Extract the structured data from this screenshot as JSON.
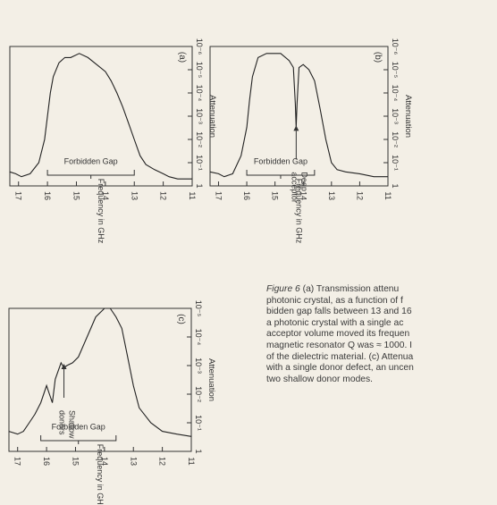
{
  "panels": [
    {
      "id": "a",
      "label": "(a)",
      "ylabel": "Attenuation",
      "xlabel": "Frequency in GHz",
      "gap_label": "Forbidden Gap",
      "annotation": "",
      "y_ticks": [
        "10⁻⁶",
        "10⁻⁵",
        "10⁻⁴",
        "10⁻³",
        "10⁻²",
        "10⁻¹",
        "1"
      ],
      "x_ticks": [
        "11",
        "12",
        "13",
        "14",
        "15",
        "16",
        "17"
      ]
    },
    {
      "id": "b",
      "label": "(b)",
      "ylabel": "Attenuation",
      "xlabel": "Frequency in GHz",
      "gap_label": "Forbidden Gap",
      "annotation": [
        "Deep",
        "acceptor"
      ],
      "y_ticks": [
        "10⁻⁶",
        "10⁻⁵",
        "10⁻⁴",
        "10⁻³",
        "10⁻²",
        "10⁻¹",
        "1"
      ],
      "x_ticks": [
        "11",
        "12",
        "13",
        "14",
        "15",
        "16",
        "17"
      ]
    },
    {
      "id": "c",
      "label": "(c)",
      "ylabel": "Attenuation",
      "xlabel": "Frequency in GHz",
      "gap_label": "Forbidden Gap",
      "annotation": [
        "Shallow",
        "donors"
      ],
      "y_ticks": [
        "10⁻⁵",
        "10⁻⁴",
        "10⁻³",
        "10⁻²",
        "10⁻¹",
        "1"
      ],
      "x_ticks": [
        "11",
        "12",
        "13",
        "14",
        "15",
        "16",
        "17"
      ]
    }
  ],
  "caption": {
    "label": "Figure 6",
    "lines": [
      "(a)  Transmission  attenu",
      "photonic crystal, as a function of f",
      "bidden gap falls between 13 and 16",
      "a photonic crystal with a single ac",
      "acceptor volume moved its frequen",
      "magnetic resonator Q was ≈ 1000. I",
      "of the dielectric material. (c) Attenua",
      "with a single donor defect, an uncen",
      "two shallow donor modes."
    ]
  },
  "chart_data": [
    {
      "type": "line",
      "title": "",
      "panel": "(a)",
      "xlabel": "Frequency in GHz",
      "ylabel": "Attenuation",
      "y_scale": "log",
      "xlim": [
        11,
        17.3
      ],
      "ylim": [
        1e-06,
        1
      ],
      "gap": [
        13,
        16
      ],
      "gap_label": "Forbidden Gap",
      "x": [
        11,
        11.5,
        11.8,
        12,
        12.3,
        12.6,
        12.8,
        13,
        13.2,
        13.4,
        13.6,
        13.8,
        14,
        14.3,
        14.6,
        14.9,
        15.2,
        15.4,
        15.6,
        15.8,
        15.9,
        16,
        16.1,
        16.3,
        16.6,
        16.9,
        17.1,
        17.3
      ],
      "y": [
        0.5,
        0.5,
        0.4,
        0.3,
        0.2,
        0.12,
        0.05,
        0.01,
        0.002,
        0.0004,
        0.0001,
        3e-05,
        1.2e-05,
        6e-06,
        3e-06,
        2e-06,
        3e-06,
        3e-06,
        5e-06,
        2e-05,
        0.0001,
        0.001,
        0.01,
        0.1,
        0.3,
        0.4,
        0.3,
        0.25
      ]
    },
    {
      "type": "line",
      "title": "",
      "panel": "(b)",
      "xlabel": "Frequency in GHz",
      "ylabel": "Attenuation",
      "y_scale": "log",
      "xlim": [
        11,
        17.3
      ],
      "ylim": [
        1e-06,
        1
      ],
      "gap": [
        13.6,
        16
      ],
      "gap_label": "Forbidden Gap",
      "annotations": [
        {
          "text": "Deep acceptor",
          "x": 14.25,
          "y": 0.003
        }
      ],
      "x": [
        11,
        11.5,
        12,
        12.5,
        12.8,
        13,
        13.2,
        13.4,
        13.6,
        13.8,
        14,
        14.15,
        14.22,
        14.25,
        14.28,
        14.35,
        14.5,
        14.8,
        15,
        15.3,
        15.6,
        15.8,
        15.9,
        16,
        16.2,
        16.5,
        16.8,
        17,
        17.3
      ],
      "y": [
        0.4,
        0.4,
        0.3,
        0.25,
        0.2,
        0.1,
        0.01,
        0.0005,
        3e-05,
        1e-05,
        6e-06,
        8e-06,
        0.0003,
        0.003,
        0.0003,
        8e-06,
        4e-06,
        2e-06,
        2e-06,
        2e-06,
        3e-06,
        2e-05,
        0.0002,
        0.003,
        0.05,
        0.3,
        0.4,
        0.3,
        0.25
      ]
    },
    {
      "type": "line",
      "title": "",
      "panel": "(c)",
      "xlabel": "Frequency in GHz",
      "ylabel": "Attenuation",
      "y_scale": "log",
      "xlim": [
        11,
        17.3
      ],
      "ylim": [
        1e-05,
        1
      ],
      "gap": [
        13.6,
        16.2
      ],
      "gap_label": "Forbidden Gap",
      "annotations": [
        {
          "text": "Shallow donors",
          "x": 15.4,
          "y": 0.001
        }
      ],
      "x": [
        11,
        11.5,
        12,
        12.4,
        12.8,
        13,
        13.2,
        13.4,
        13.6,
        13.8,
        14,
        14.3,
        14.6,
        14.9,
        15.1,
        15.3,
        15.4,
        15.5,
        15.7,
        15.8,
        15.9,
        16,
        16.2,
        16.4,
        16.6,
        16.8,
        17,
        17.3
      ],
      "y": [
        0.3,
        0.25,
        0.2,
        0.1,
        0.03,
        0.005,
        0.0005,
        5e-05,
        2e-05,
        1e-05,
        1e-05,
        2e-05,
        0.0001,
        0.0005,
        0.0008,
        0.001,
        0.0012,
        0.0008,
        0.003,
        0.02,
        0.01,
        0.005,
        0.02,
        0.05,
        0.1,
        0.2,
        0.25,
        0.2
      ]
    }
  ]
}
